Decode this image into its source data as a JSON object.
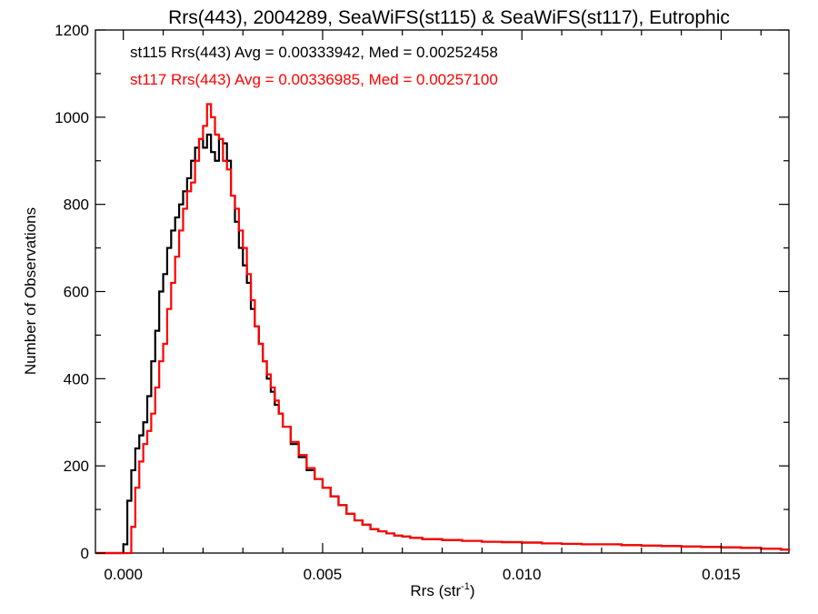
{
  "chart_data": {
    "type": "line",
    "title": "Rrs(443), 2004289, SeaWiFS(st115) & SeaWiFS(st117), Eutrophic",
    "xlabel_base": "Rrs (str",
    "xlabel_sup": "-1",
    "xlabel_close": ")",
    "ylabel": "Number of Observations",
    "xlim": [
      -0.0007,
      0.0167
    ],
    "ylim": [
      0,
      1200
    ],
    "x_ticks": [
      0.0,
      0.005,
      0.01,
      0.015
    ],
    "x_tick_labels": [
      "0.000",
      "0.005",
      "0.010",
      "0.015"
    ],
    "y_ticks": [
      0,
      200,
      400,
      600,
      800,
      1000,
      1200
    ],
    "y_tick_labels": [
      "0",
      "200",
      "400",
      "600",
      "800",
      "1000",
      "1200"
    ],
    "grid": false,
    "legend": [
      {
        "text": "st115 Rrs(443) Avg = 0.00333942, Med = 0.00252458",
        "color": "#000000"
      },
      {
        "text": "st117 Rrs(443) Avg = 0.00336985, Med = 0.00257100",
        "color": "#ff0000"
      }
    ],
    "series": [
      {
        "color": "#000000",
        "x": [
          -0.0007,
          -5e-05,
          0.0,
          0.0001,
          0.0002,
          0.0003,
          0.0004,
          0.0005,
          0.0006,
          0.0007,
          0.0008,
          0.0009,
          0.001,
          0.0011,
          0.0012,
          0.0013,
          0.0014,
          0.0015,
          0.0016,
          0.0017,
          0.0018,
          0.0019,
          0.002,
          0.0021,
          0.0022,
          0.0023,
          0.0024,
          0.0025,
          0.0026,
          0.0027,
          0.0028,
          0.0029,
          0.003,
          0.0031,
          0.0032,
          0.0033,
          0.0034,
          0.0035,
          0.0036,
          0.0037,
          0.0038,
          0.0039,
          0.004,
          0.0042,
          0.0044,
          0.0046,
          0.0048,
          0.005,
          0.0052,
          0.0054,
          0.0056,
          0.0058,
          0.006,
          0.0062,
          0.0064,
          0.0066,
          0.0068,
          0.007,
          0.0072,
          0.0075,
          0.008,
          0.0085,
          0.009,
          0.0095,
          0.01,
          0.0105,
          0.011,
          0.0115,
          0.012,
          0.0125,
          0.013,
          0.0135,
          0.014,
          0.0145,
          0.015,
          0.0155,
          0.016,
          0.0165,
          0.0167
        ],
        "y": [
          0,
          0,
          20,
          120,
          190,
          240,
          270,
          300,
          360,
          440,
          510,
          600,
          640,
          700,
          740,
          770,
          800,
          830,
          860,
          900,
          930,
          950,
          930,
          960,
          920,
          900,
          950,
          940,
          900,
          820,
          760,
          700,
          660,
          620,
          560,
          520,
          480,
          440,
          400,
          370,
          340,
          320,
          290,
          250,
          220,
          190,
          170,
          150,
          130,
          110,
          90,
          75,
          65,
          55,
          50,
          45,
          40,
          38,
          35,
          32,
          30,
          28,
          26,
          25,
          24,
          22,
          21,
          20,
          20,
          18,
          17,
          16,
          15,
          14,
          13,
          12,
          10,
          8,
          5
        ]
      },
      {
        "color": "#ff0000",
        "x": [
          -0.0007,
          0.0001,
          0.0002,
          0.0003,
          0.0004,
          0.0005,
          0.0006,
          0.0007,
          0.0008,
          0.0009,
          0.001,
          0.0011,
          0.0012,
          0.0013,
          0.0014,
          0.0015,
          0.0016,
          0.0017,
          0.0018,
          0.0019,
          0.002,
          0.0021,
          0.0022,
          0.0023,
          0.0024,
          0.0025,
          0.0026,
          0.0027,
          0.0028,
          0.0029,
          0.003,
          0.0031,
          0.0032,
          0.0033,
          0.0034,
          0.0035,
          0.0036,
          0.0037,
          0.0038,
          0.0039,
          0.004,
          0.0042,
          0.0044,
          0.0046,
          0.0048,
          0.005,
          0.0052,
          0.0054,
          0.0056,
          0.0058,
          0.006,
          0.0062,
          0.0064,
          0.0066,
          0.0068,
          0.007,
          0.0072,
          0.0075,
          0.008,
          0.0085,
          0.009,
          0.0095,
          0.01,
          0.0105,
          0.011,
          0.0115,
          0.012,
          0.0125,
          0.013,
          0.0135,
          0.014,
          0.0145,
          0.015,
          0.0155,
          0.016,
          0.0165,
          0.0167
        ],
        "y": [
          0,
          0,
          60,
          150,
          210,
          250,
          280,
          320,
          380,
          440,
          480,
          560,
          620,
          680,
          740,
          790,
          830,
          850,
          900,
          950,
          980,
          1030,
          1000,
          960,
          950,
          900,
          880,
          820,
          790,
          740,
          700,
          640,
          580,
          520,
          480,
          440,
          410,
          380,
          350,
          320,
          290,
          255,
          225,
          195,
          170,
          150,
          130,
          110,
          90,
          75,
          65,
          55,
          50,
          45,
          40,
          38,
          35,
          32,
          30,
          28,
          26,
          25,
          24,
          22,
          21,
          20,
          20,
          18,
          17,
          16,
          15,
          14,
          13,
          12,
          10,
          8,
          5
        ]
      }
    ]
  }
}
